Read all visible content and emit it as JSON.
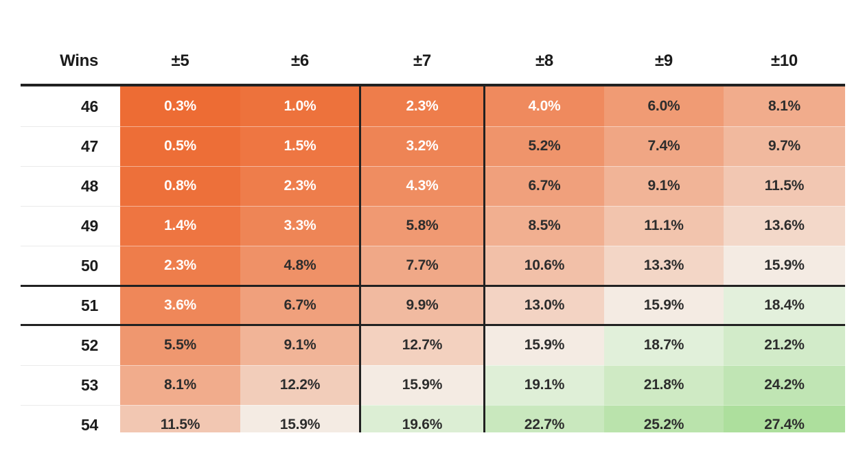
{
  "chart_data": {
    "type": "heatmap",
    "title": "",
    "row_label_header": "Wins",
    "columns": [
      "±5",
      "±6",
      "±7",
      "±8",
      "±9",
      "±10"
    ],
    "row_labels": [
      "46",
      "47",
      "48",
      "49",
      "50",
      "51",
      "52",
      "53",
      "54"
    ],
    "values": [
      [
        0.3,
        1.0,
        2.3,
        4.0,
        6.0,
        8.1
      ],
      [
        0.5,
        1.5,
        3.2,
        5.2,
        7.4,
        9.7
      ],
      [
        0.8,
        2.3,
        4.3,
        6.7,
        9.1,
        11.5
      ],
      [
        1.4,
        3.3,
        5.8,
        8.5,
        11.1,
        13.6
      ],
      [
        2.3,
        4.8,
        7.7,
        10.6,
        13.3,
        15.9
      ],
      [
        3.6,
        6.7,
        9.9,
        13.0,
        15.9,
        18.4
      ],
      [
        5.5,
        9.1,
        12.7,
        15.9,
        18.7,
        21.2
      ],
      [
        8.1,
        12.2,
        15.9,
        19.1,
        21.8,
        24.2
      ],
      [
        11.5,
        15.9,
        19.6,
        22.7,
        25.2,
        27.4
      ]
    ],
    "value_suffix": "%",
    "highlight": {
      "row_label": "51",
      "column": "±7"
    },
    "last_row_clipped": true,
    "legend_position": "none",
    "grid": "off"
  },
  "scale": {
    "midpoint": 15.9,
    "max": 27.4,
    "white_text_below": 4.5
  },
  "colors": {
    "orange_low": "#ED6A31",
    "warm_white_mid": "#F4EBE3",
    "cool_white_mid": "#F2F5EE",
    "green_high": "#ADDF9D",
    "dark_line": "#212121",
    "row_separator": "#EAEAEA",
    "text_dark": "#2D2D2D",
    "text_light": "#FFFFFF",
    "header_text": "#1B1B1B",
    "background": "#FFFFFF"
  }
}
